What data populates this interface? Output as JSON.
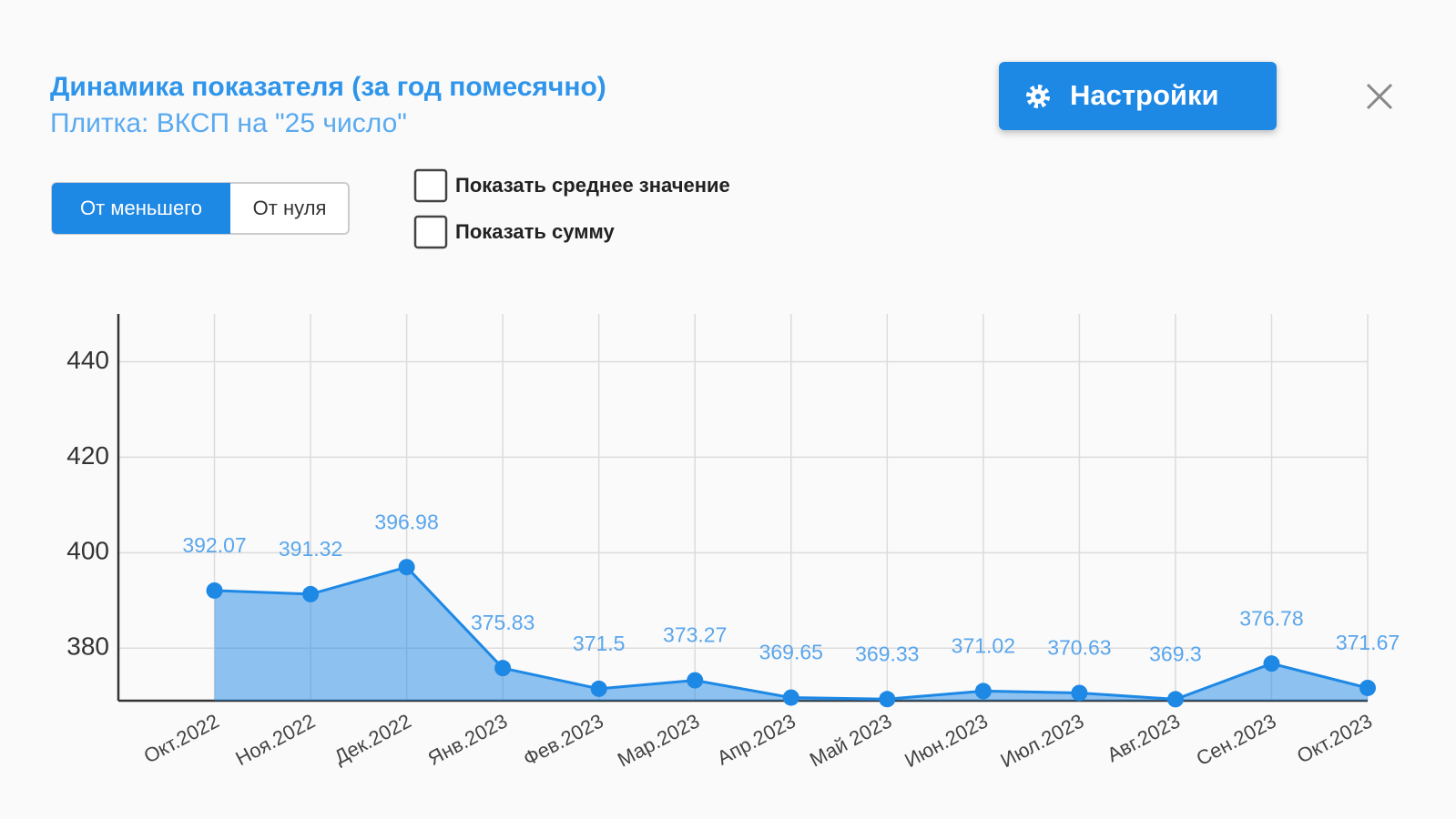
{
  "header": {
    "title": "Динамика показателя (за год помесячно)",
    "subtitle": "Плитка: ВКСП на \"25 число\""
  },
  "settings_button": "Настройки",
  "scale_toggle": [
    "От меньшего",
    "От нуля"
  ],
  "checkboxes": [
    "Показать среднее значение",
    "Показать сумму"
  ],
  "chart_data": {
    "type": "area",
    "categories": [
      "Окт.2022",
      "Ноя.2022",
      "Дек.2022",
      "Янв.2023",
      "Фев.2023",
      "Мар.2023",
      "Апр.2023",
      "Май 2023",
      "Июн.2023",
      "Июл.2023",
      "Авг.2023",
      "Сен.2023",
      "Окт.2023"
    ],
    "values": [
      392.07,
      391.32,
      396.98,
      375.83,
      371.5,
      373.27,
      369.65,
      369.33,
      371.02,
      370.63,
      369.3,
      376.78,
      371.67
    ],
    "color": "#1e88e5",
    "ylim": [
      369,
      450
    ],
    "yticks": [
      380,
      400,
      420,
      440
    ],
    "grid": true
  }
}
